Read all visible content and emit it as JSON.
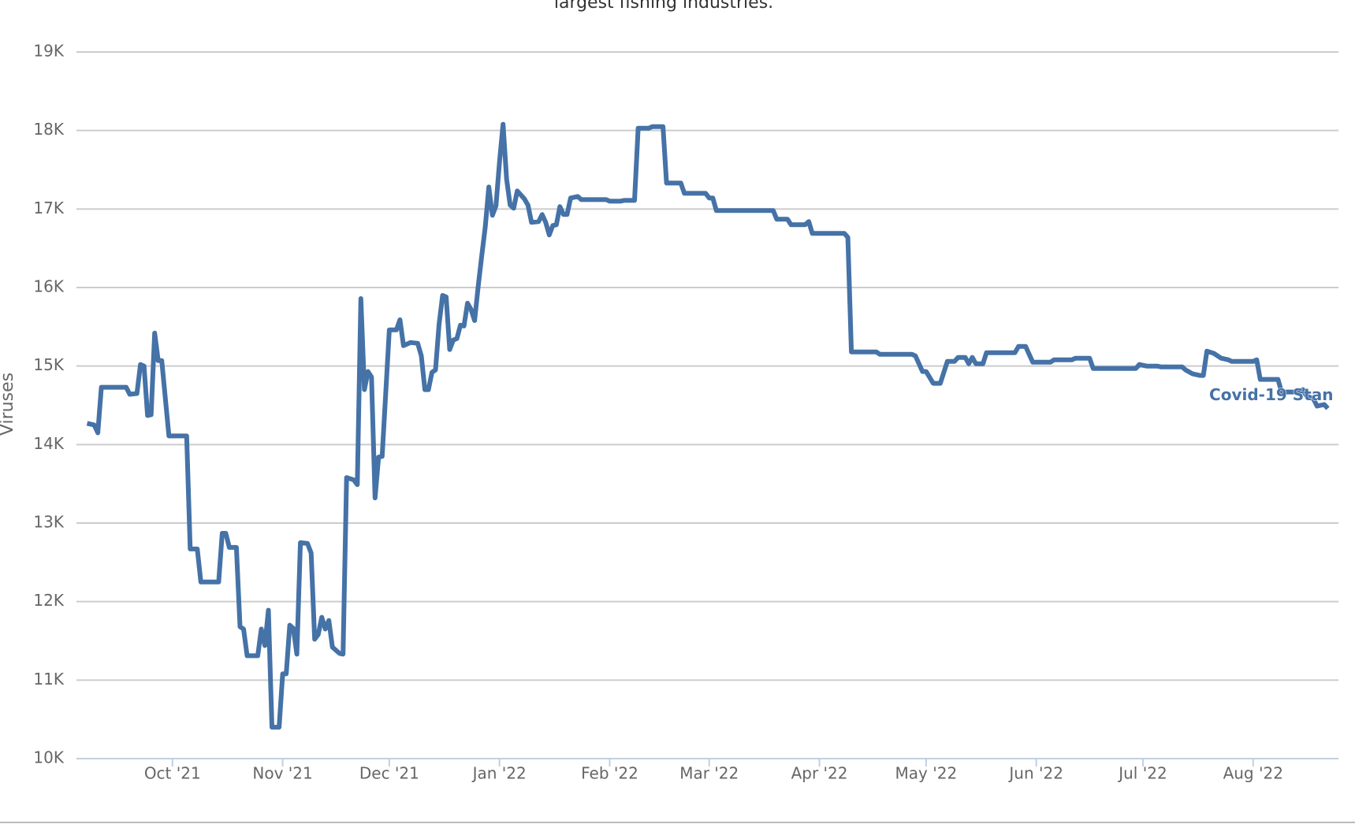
{
  "chart_data": {
    "type": "line",
    "title": "largest fishing industries.",
    "y_label": "Viruses",
    "xlim": [
      "2021-09-04",
      "2022-08-25"
    ],
    "xticks": [
      {
        "value": "2021-10-01",
        "label": "Oct '21"
      },
      {
        "value": "2021-11-01",
        "label": "Nov '21"
      },
      {
        "value": "2021-12-01",
        "label": "Dec '21"
      },
      {
        "value": "2022-01-01",
        "label": "Jan '22"
      },
      {
        "value": "2022-02-01",
        "label": "Feb '22"
      },
      {
        "value": "2022-03-01",
        "label": "Mar '22"
      },
      {
        "value": "2022-04-01",
        "label": "Apr '22"
      },
      {
        "value": "2022-05-01",
        "label": "May '22"
      },
      {
        "value": "2022-06-01",
        "label": "Jun '22"
      },
      {
        "value": "2022-07-01",
        "label": "Jul '22"
      },
      {
        "value": "2022-08-01",
        "label": "Aug '22"
      }
    ],
    "ylim": [
      10000,
      19000
    ],
    "yticks": [
      {
        "value": 10000,
        "label": "10K"
      },
      {
        "value": 11000,
        "label": "11K"
      },
      {
        "value": 12000,
        "label": "12K"
      },
      {
        "value": 13000,
        "label": "13K"
      },
      {
        "value": 14000,
        "label": "14K"
      },
      {
        "value": 15000,
        "label": "15K"
      },
      {
        "value": 16000,
        "label": "16K"
      },
      {
        "value": 17000,
        "label": "17K"
      },
      {
        "value": 18000,
        "label": "18K"
      },
      {
        "value": 19000,
        "label": "19K"
      }
    ],
    "grid": true,
    "x": [
      "2021-09-07",
      "2021-09-09",
      "2021-09-10",
      "2021-09-11",
      "2021-09-18",
      "2021-09-19",
      "2021-09-21",
      "2021-09-22",
      "2021-09-23",
      "2021-09-24",
      "2021-09-25",
      "2021-09-26",
      "2021-09-27",
      "2021-09-28",
      "2021-09-30",
      "2021-10-05",
      "2021-10-06",
      "2021-10-08",
      "2021-10-09",
      "2021-10-14",
      "2021-10-15",
      "2021-10-16",
      "2021-10-17",
      "2021-10-19",
      "2021-10-20",
      "2021-10-21",
      "2021-10-22",
      "2021-10-25",
      "2021-10-26",
      "2021-10-27",
      "2021-10-28",
      "2021-10-29",
      "2021-10-31",
      "2021-11-01",
      "2021-11-02",
      "2021-11-03",
      "2021-11-04",
      "2021-11-05",
      "2021-11-06",
      "2021-11-08",
      "2021-11-09",
      "2021-11-10",
      "2021-11-11",
      "2021-11-12",
      "2021-11-13",
      "2021-11-14",
      "2021-11-15",
      "2021-11-17",
      "2021-11-18",
      "2021-11-19",
      "2021-11-21",
      "2021-11-22",
      "2021-11-23",
      "2021-11-24",
      "2021-11-25",
      "2021-11-26",
      "2021-11-27",
      "2021-11-28",
      "2021-11-29",
      "2021-12-01",
      "2021-12-03",
      "2021-12-04",
      "2021-12-05",
      "2021-12-07",
      "2021-12-09",
      "2021-12-10",
      "2021-12-11",
      "2021-12-12",
      "2021-12-13",
      "2021-12-14",
      "2021-12-15",
      "2021-12-16",
      "2021-12-17",
      "2021-12-18",
      "2021-12-19",
      "2021-12-20",
      "2021-12-21",
      "2021-12-22",
      "2021-12-23",
      "2021-12-24",
      "2021-12-25",
      "2021-12-26",
      "2021-12-27",
      "2021-12-28",
      "2021-12-29",
      "2021-12-30",
      "2021-12-31",
      "2022-01-01",
      "2022-01-02",
      "2022-01-03",
      "2022-01-04",
      "2022-01-05",
      "2022-01-06",
      "2022-01-08",
      "2022-01-09",
      "2022-01-10",
      "2022-01-12",
      "2022-01-13",
      "2022-01-14",
      "2022-01-15",
      "2022-01-16",
      "2022-01-17",
      "2022-01-18",
      "2022-01-19",
      "2022-01-20",
      "2022-01-21",
      "2022-01-23",
      "2022-01-24",
      "2022-01-31",
      "2022-02-01",
      "2022-02-04",
      "2022-02-05",
      "2022-02-08",
      "2022-02-09",
      "2022-02-12",
      "2022-02-13",
      "2022-02-16",
      "2022-02-17",
      "2022-02-21",
      "2022-02-22",
      "2022-02-28",
      "2022-03-01",
      "2022-03-02",
      "2022-03-03",
      "2022-03-19",
      "2022-03-20",
      "2022-03-23",
      "2022-03-24",
      "2022-03-28",
      "2022-03-29",
      "2022-03-30",
      "2022-04-08",
      "2022-04-09",
      "2022-04-10",
      "2022-04-17",
      "2022-04-18",
      "2022-04-27",
      "2022-04-28",
      "2022-04-30",
      "2022-05-01",
      "2022-05-03",
      "2022-05-05",
      "2022-05-07",
      "2022-05-09",
      "2022-05-10",
      "2022-05-12",
      "2022-05-13",
      "2022-05-14",
      "2022-05-15",
      "2022-05-17",
      "2022-05-18",
      "2022-05-26",
      "2022-05-27",
      "2022-05-29",
      "2022-05-31",
      "2022-06-05",
      "2022-06-06",
      "2022-06-11",
      "2022-06-12",
      "2022-06-16",
      "2022-06-17",
      "2022-06-29",
      "2022-06-30",
      "2022-07-02",
      "2022-07-05",
      "2022-07-06",
      "2022-07-12",
      "2022-07-13",
      "2022-07-15",
      "2022-07-17",
      "2022-07-18",
      "2022-07-19",
      "2022-07-21",
      "2022-07-23",
      "2022-07-25",
      "2022-07-26",
      "2022-08-01",
      "2022-08-02",
      "2022-08-03",
      "2022-08-08",
      "2022-08-09",
      "2022-08-14",
      "2022-08-15",
      "2022-08-16",
      "2022-08-18",
      "2022-08-19",
      "2022-08-21",
      "2022-08-22"
    ],
    "series": [
      {
        "name": "Covid-19 Stan",
        "color": "#4572a7",
        "values": [
          14270,
          14250,
          14150,
          14730,
          14730,
          14640,
          14650,
          15020,
          15000,
          14370,
          14380,
          15420,
          15070,
          15070,
          14110,
          14110,
          12670,
          12670,
          12250,
          12250,
          12870,
          12870,
          12690,
          12690,
          11680,
          11650,
          11310,
          11310,
          11650,
          11440,
          11890,
          10400,
          10400,
          11080,
          11080,
          11700,
          11660,
          11330,
          12750,
          12740,
          12620,
          11520,
          11580,
          11800,
          11650,
          11760,
          11420,
          11340,
          11330,
          13580,
          13550,
          13490,
          15860,
          14700,
          14930,
          14860,
          13320,
          13840,
          13850,
          15460,
          15460,
          15590,
          15260,
          15300,
          15290,
          15130,
          14700,
          14700,
          14920,
          14950,
          15530,
          15900,
          15880,
          15210,
          15330,
          15350,
          15520,
          15510,
          15800,
          15720,
          15580,
          16010,
          16400,
          16770,
          17280,
          16920,
          17040,
          17600,
          18080,
          17380,
          17050,
          17010,
          17230,
          17130,
          17050,
          16830,
          16840,
          16930,
          16830,
          16670,
          16790,
          16800,
          17030,
          16930,
          16930,
          17140,
          17160,
          17120,
          17120,
          17100,
          17100,
          17110,
          17110,
          18030,
          18030,
          18050,
          18050,
          17330,
          17330,
          17200,
          17200,
          17140,
          17140,
          16980,
          16980,
          16870,
          16870,
          16800,
          16800,
          16840,
          16690,
          16690,
          16640,
          15180,
          15180,
          15150,
          15150,
          15130,
          14930,
          14930,
          14780,
          14780,
          15060,
          15060,
          15110,
          15110,
          15030,
          15110,
          15030,
          15030,
          15170,
          15170,
          15250,
          15250,
          15050,
          15050,
          15080,
          15080,
          15100,
          15100,
          14970,
          14970,
          15020,
          15000,
          15000,
          14990,
          14990,
          14950,
          14900,
          14880,
          14880,
          15190,
          15160,
          15100,
          15080,
          15060,
          15060,
          15080,
          14830,
          14830,
          14670,
          14670,
          14700,
          14620,
          14580,
          14490,
          14510,
          14460
        ]
      }
    ]
  }
}
